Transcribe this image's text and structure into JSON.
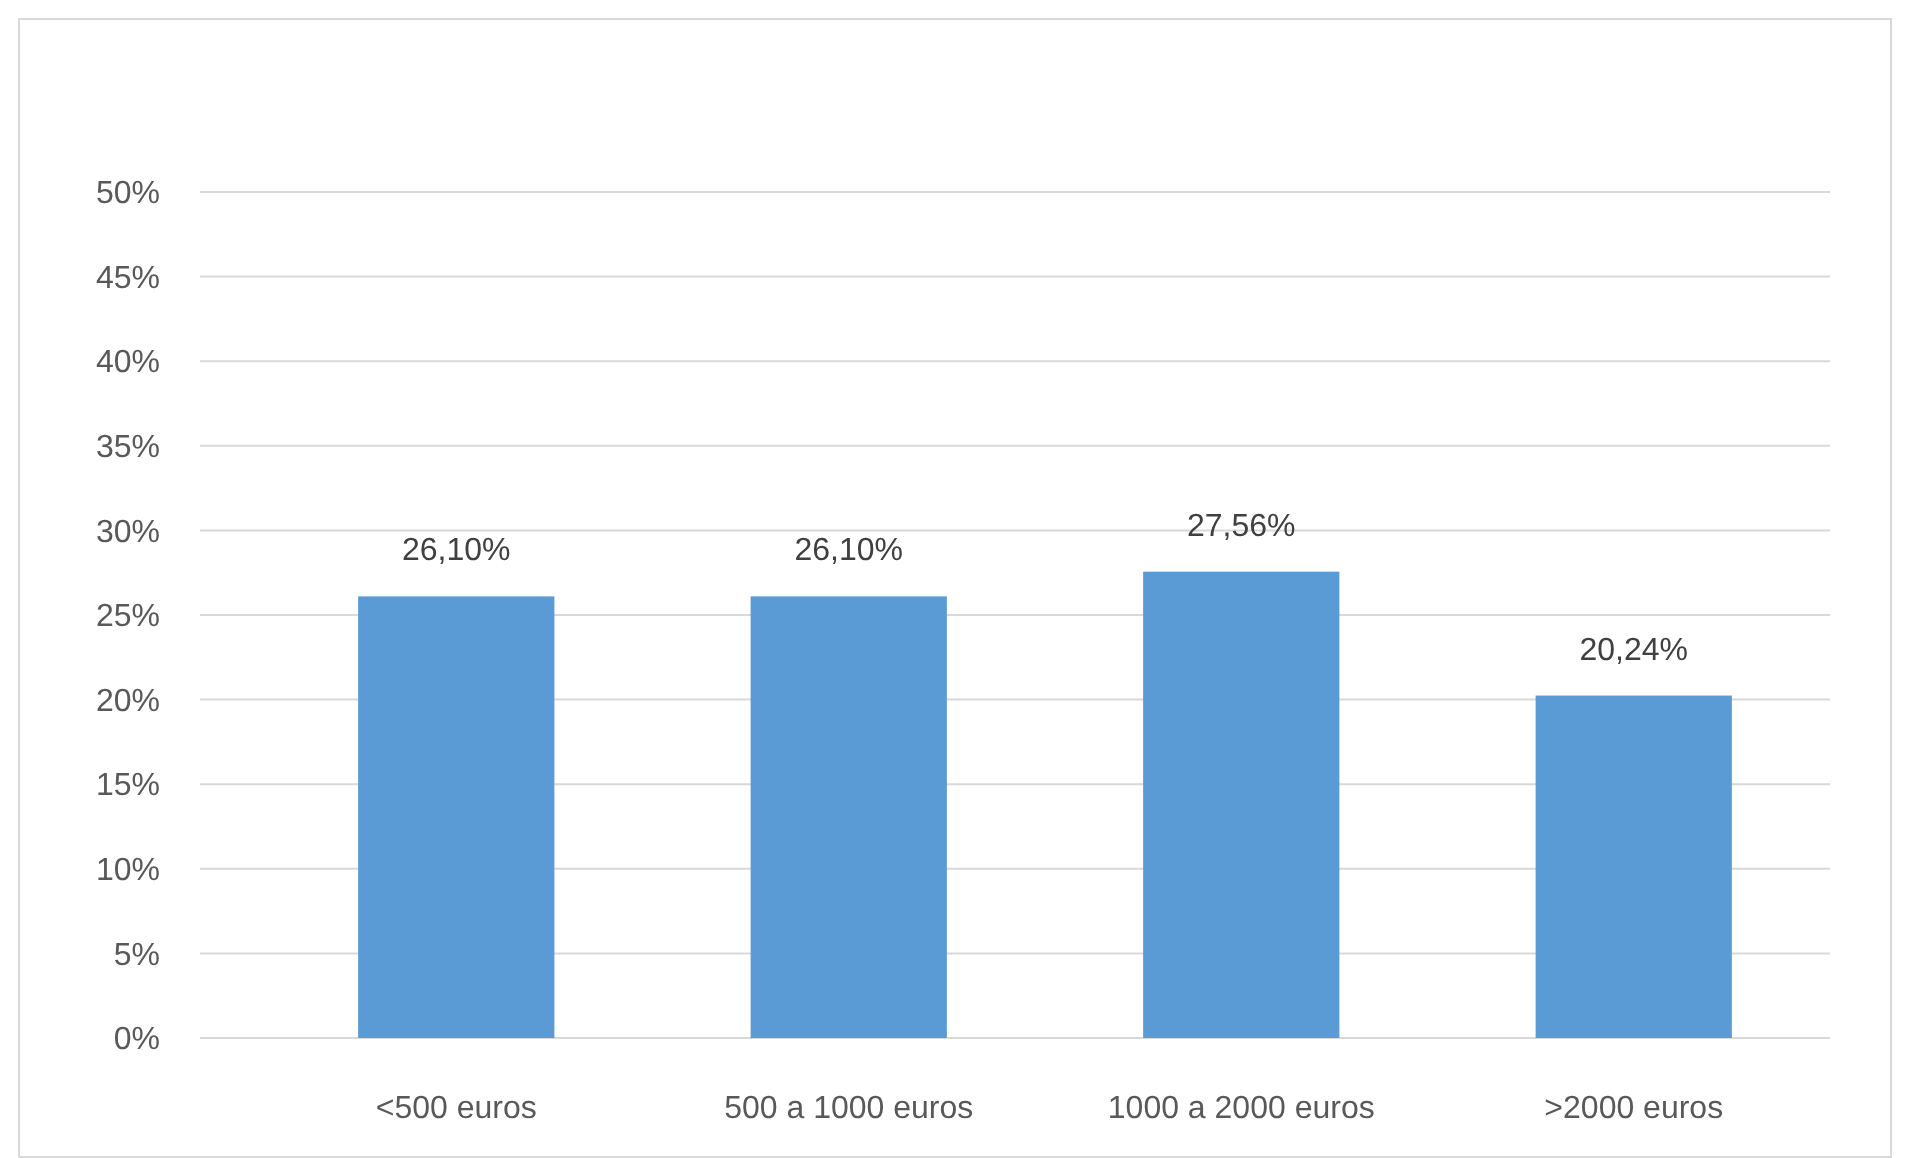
{
  "chart_data": {
    "type": "bar",
    "categories": [
      "<500 euros",
      "500 a 1000 euros",
      "1000 a 2000 euros",
      ">2000 euros"
    ],
    "values": [
      26.1,
      26.1,
      27.56,
      20.24
    ],
    "value_labels": [
      "26,10%",
      "26,10%",
      "27,56%",
      "20,24%"
    ],
    "color": "#5b9bd5",
    "ylim": [
      0,
      50
    ],
    "yticks": [
      {
        "value": 0,
        "label": "0%"
      },
      {
        "value": 5,
        "label": "5%"
      },
      {
        "value": 10,
        "label": "10%"
      },
      {
        "value": 15,
        "label": "15%"
      },
      {
        "value": 20,
        "label": "20%"
      },
      {
        "value": 25,
        "label": "25%"
      },
      {
        "value": 30,
        "label": "30%"
      },
      {
        "value": 35,
        "label": "35%"
      },
      {
        "value": 40,
        "label": "40%"
      },
      {
        "value": 45,
        "label": "45%"
      },
      {
        "value": 50,
        "label": "50%"
      }
    ],
    "grid": "y"
  }
}
